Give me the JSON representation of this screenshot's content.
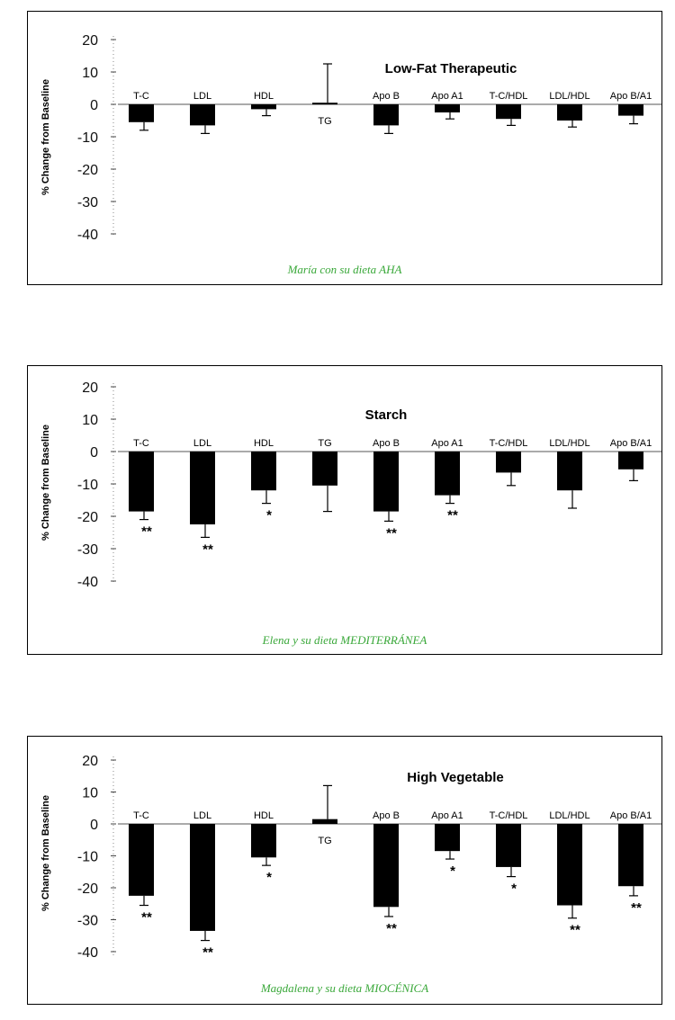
{
  "chart_data": [
    {
      "type": "bar",
      "title": "Low-Fat  Therapeutic",
      "ylabel": "% Change from Baseline",
      "caption": "María con su dieta AHA",
      "ylim": [
        -40,
        20
      ],
      "yticks": [
        "20",
        "10",
        "0",
        "-10",
        "-20",
        "-30",
        "-40"
      ],
      "categories": [
        "T-C",
        "LDL",
        "HDL",
        "TG",
        "Apo B",
        "Apo A1",
        "T-C/HDL",
        "LDL/HDL",
        "Apo B/A1"
      ],
      "values": [
        -5.5,
        -6.5,
        -1.5,
        0.5,
        -6.5,
        -2.5,
        -4.5,
        -5,
        -3.5
      ],
      "errors": [
        2.5,
        2.5,
        2,
        12,
        2.5,
        2,
        2,
        2,
        2.5
      ],
      "significance": [
        "",
        "",
        "",
        "",
        "",
        "",
        "",
        "",
        ""
      ],
      "grid": false
    },
    {
      "type": "bar",
      "title": "Starch",
      "ylabel": "% Change from Baseline",
      "caption": "Elena y su dieta MEDITERRÁNEA",
      "ylim": [
        -40,
        20
      ],
      "yticks": [
        "20",
        "10",
        "0",
        "-10",
        "-20",
        "-30",
        "-40"
      ],
      "categories": [
        "T-C",
        "LDL",
        "HDL",
        "TG",
        "Apo B",
        "Apo A1",
        "T-C/HDL",
        "LDL/HDL",
        "Apo B/A1"
      ],
      "values": [
        -18.5,
        -22.5,
        -12,
        -10.5,
        -18.5,
        -13.5,
        -6.5,
        -12,
        -5.5
      ],
      "errors": [
        2.5,
        4,
        4,
        8,
        3,
        2.5,
        4,
        5.5,
        3.5
      ],
      "significance": [
        "**",
        "**",
        "*",
        "",
        "**",
        "**",
        "",
        "",
        ""
      ],
      "grid": false
    },
    {
      "type": "bar",
      "title": "High Vegetable",
      "ylabel": "% Change from Baseline",
      "caption": "Magdalena y su dieta MIOCÉNICA",
      "ylim": [
        -40,
        20
      ],
      "yticks": [
        "20",
        "10",
        "0",
        "-10",
        "-20",
        "-30",
        "-40"
      ],
      "categories": [
        "T-C",
        "LDL",
        "HDL",
        "TG",
        "Apo B",
        "Apo A1",
        "T-C/HDL",
        "LDL/HDL",
        "Apo B/A1"
      ],
      "values": [
        -22.5,
        -33.5,
        -10.5,
        1.5,
        -26,
        -8.5,
        -13.5,
        -25.5,
        -19.5
      ],
      "errors": [
        3,
        3,
        2.5,
        10.5,
        3,
        2.5,
        3,
        4,
        3
      ],
      "significance": [
        "**",
        "**",
        "*",
        "",
        "**",
        "*",
        "*",
        "**",
        "**"
      ],
      "grid": false
    }
  ]
}
